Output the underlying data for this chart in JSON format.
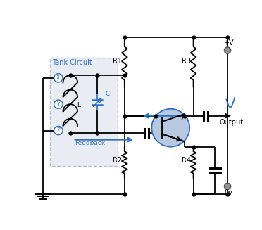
{
  "bg_color": "#ffffff",
  "tank_label": "Tank Circuit",
  "feedback_label": "Feedback",
  "output_label": "Output",
  "pv_label": "+V",
  "ov_label": "0v",
  "r1_label": "R1",
  "r2_label": "R2",
  "r3_label": "R3",
  "r4_label": "R4",
  "c_label": "C",
  "l_label": "L",
  "line_color": "#000000",
  "blue_color": "#3070c0",
  "tank_fill": "#e0e4ef",
  "tank_edge": "#9aabcc",
  "transistor_fill": "#b8c8e0",
  "transistor_edge": "#3070c0",
  "terminal_fill": "#909090",
  "terminal_edge": "#555555"
}
